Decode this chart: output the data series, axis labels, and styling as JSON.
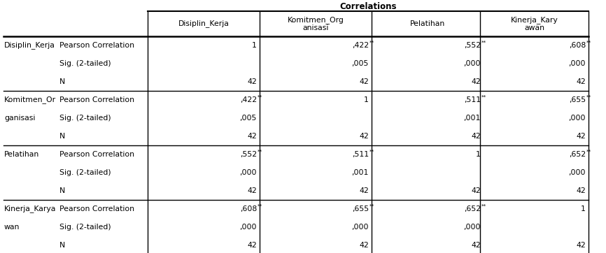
{
  "title": "Correlations",
  "col_headers": [
    "Disiplin_Kerja",
    "Komitmen_Org\nanisasi",
    "Pelatihan",
    "Kinerja_Kary\nawan"
  ],
  "row_groups": [
    {
      "var_name_line1": "Disiplin_Kerja",
      "var_name_line2": "",
      "rows": [
        [
          "Pearson Correlation",
          "1",
          ",422**",
          ",552**",
          ",608**"
        ],
        [
          "Sig. (2-tailed)",
          "",
          ",005",
          ",000",
          ",000"
        ],
        [
          "N",
          "42",
          "42",
          "42",
          "42"
        ]
      ]
    },
    {
      "var_name_line1": "Komitmen_Or",
      "var_name_line2": "ganisasi",
      "rows": [
        [
          "Pearson Correlation",
          ",422**",
          "1",
          ",511**",
          ",655**"
        ],
        [
          "Sig. (2-tailed)",
          ",005",
          "",
          ",001",
          ",000"
        ],
        [
          "N",
          "42",
          "42",
          "42",
          "42"
        ]
      ]
    },
    {
      "var_name_line1": "Pelatihan",
      "var_name_line2": "",
      "rows": [
        [
          "Pearson Correlation",
          ",552**",
          ",511**",
          "1",
          ",652**"
        ],
        [
          "Sig. (2-tailed)",
          ",000",
          ",001",
          "",
          ",000"
        ],
        [
          "N",
          "42",
          "42",
          "42",
          "42"
        ]
      ]
    },
    {
      "var_name_line1": "Kinerja_Karya",
      "var_name_line2": "wan",
      "rows": [
        [
          "Pearson Correlation",
          ",608**",
          ",655**",
          ",652**",
          "1"
        ],
        [
          "Sig. (2-tailed)",
          ",000",
          ",000",
          ",000",
          ""
        ],
        [
          "N",
          "42",
          "42",
          "42",
          "42"
        ]
      ]
    }
  ],
  "bg_color": "#ffffff",
  "font_size": 7.8,
  "title_font_size": 8.5
}
